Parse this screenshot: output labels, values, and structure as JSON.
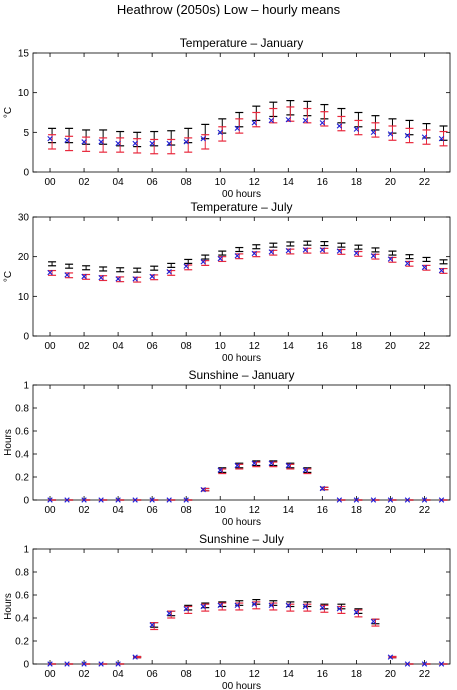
{
  "figure": {
    "title": "Heathrow (2050s) Low – hourly means"
  },
  "colors": {
    "black_series": "#000000",
    "red_series": "#e8283c",
    "blue_series": "#1f1fd6"
  },
  "chart_data": [
    {
      "type": "scatter",
      "title": "Temperature – January",
      "xlabel": "00 hours",
      "ylabel": "°C",
      "xlim": [
        -1,
        23.5
      ],
      "ylim": [
        0,
        15
      ],
      "xticks": [
        0,
        2,
        4,
        6,
        8,
        10,
        12,
        14,
        16,
        18,
        20,
        22
      ],
      "xtick_labels": [
        "00",
        "02",
        "04",
        "06",
        "08",
        "10",
        "12",
        "14",
        "16",
        "18",
        "20",
        "22"
      ],
      "yticks": [
        0,
        5,
        10,
        15
      ],
      "ytick_labels": [
        "0",
        "5",
        "10",
        "15"
      ],
      "x": [
        0,
        1,
        2,
        3,
        4,
        5,
        6,
        7,
        8,
        9,
        10,
        11,
        12,
        13,
        14,
        15,
        16,
        17,
        18,
        19,
        20,
        21,
        22,
        23
      ],
      "series": [
        {
          "marker": "errorbar",
          "color": "#000000",
          "values": [
            4.6,
            4.6,
            4.4,
            4.4,
            4.2,
            4.1,
            4.2,
            4.3,
            4.6,
            5.1,
            5.8,
            6.6,
            7.4,
            7.9,
            8.1,
            8.0,
            7.6,
            7.1,
            6.6,
            6.2,
            5.8,
            5.6,
            5.2,
            4.9
          ],
          "errors": [
            0.9,
            0.9,
            0.9,
            0.9,
            0.9,
            0.9,
            0.9,
            0.9,
            0.9,
            0.9,
            0.9,
            0.9,
            0.9,
            0.9,
            0.9,
            0.9,
            0.9,
            0.9,
            0.9,
            0.9,
            0.9,
            0.9,
            0.9,
            0.9
          ]
        },
        {
          "marker": "errorbar",
          "color": "#e8283c",
          "values": [
            3.8,
            3.6,
            3.5,
            3.4,
            3.4,
            3.3,
            3.2,
            3.2,
            3.4,
            3.8,
            4.8,
            5.8,
            6.6,
            7.1,
            7.3,
            7.1,
            6.7,
            6.1,
            5.6,
            5.3,
            4.9,
            4.6,
            4.4,
            4.2
          ],
          "errors": [
            0.9,
            0.9,
            0.9,
            0.9,
            0.9,
            0.9,
            0.9,
            0.9,
            0.9,
            0.9,
            0.9,
            0.9,
            0.9,
            0.9,
            0.9,
            0.9,
            0.9,
            0.9,
            0.9,
            0.9,
            0.9,
            0.9,
            0.9,
            0.9
          ]
        },
        {
          "marker": "x",
          "color": "#1f1fd6",
          "values": [
            4.2,
            4.0,
            3.8,
            3.8,
            3.6,
            3.6,
            3.6,
            3.6,
            3.8,
            4.2,
            5.0,
            5.5,
            6.2,
            6.5,
            6.6,
            6.5,
            6.2,
            5.8,
            5.4,
            5.0,
            4.8,
            4.6,
            4.4,
            4.2
          ]
        }
      ]
    },
    {
      "type": "scatter",
      "title": "Temperature – July",
      "xlabel": "00 hours",
      "ylabel": "°C",
      "xlim": [
        -1,
        23.5
      ],
      "ylim": [
        0,
        30
      ],
      "xticks": [
        0,
        2,
        4,
        6,
        8,
        10,
        12,
        14,
        16,
        18,
        20,
        22
      ],
      "xtick_labels": [
        "00",
        "02",
        "04",
        "06",
        "08",
        "10",
        "12",
        "14",
        "16",
        "18",
        "20",
        "22"
      ],
      "yticks": [
        0,
        10,
        20,
        30
      ],
      "ytick_labels": [
        "0",
        "10",
        "20",
        "30"
      ],
      "x": [
        0,
        1,
        2,
        3,
        4,
        5,
        6,
        7,
        8,
        9,
        10,
        11,
        12,
        13,
        14,
        15,
        16,
        17,
        18,
        19,
        20,
        21,
        22,
        23
      ],
      "series": [
        {
          "marker": "errorbar",
          "color": "#000000",
          "values": [
            18.2,
            17.6,
            17.2,
            16.9,
            16.7,
            16.6,
            17.1,
            17.8,
            18.8,
            19.9,
            20.9,
            21.8,
            22.5,
            22.9,
            23.2,
            23.4,
            23.3,
            22.9,
            22.4,
            21.7,
            20.9,
            20.0,
            19.3,
            18.7
          ],
          "errors": [
            0.5,
            0.5,
            0.5,
            0.5,
            0.5,
            0.5,
            0.5,
            0.5,
            0.5,
            0.5,
            0.5,
            0.5,
            0.5,
            0.5,
            0.5,
            0.5,
            0.5,
            0.5,
            0.5,
            0.5,
            0.5,
            0.5,
            0.5,
            0.5
          ]
        },
        {
          "marker": "errorbar",
          "color": "#e8283c",
          "values": [
            15.9,
            15.3,
            14.9,
            14.6,
            14.3,
            14.2,
            14.8,
            15.9,
            17.3,
            18.4,
            19.4,
            20.1,
            20.6,
            21.0,
            21.3,
            21.5,
            21.5,
            21.2,
            20.7,
            20.0,
            19.2,
            18.2,
            17.2,
            16.4
          ],
          "errors": [
            0.6,
            0.6,
            0.6,
            0.6,
            0.6,
            0.6,
            0.6,
            0.6,
            0.6,
            0.6,
            0.6,
            0.6,
            0.6,
            0.6,
            0.6,
            0.6,
            0.6,
            0.6,
            0.6,
            0.6,
            0.6,
            0.6,
            0.6,
            0.6
          ]
        },
        {
          "marker": "x",
          "color": "#1f1fd6",
          "values": [
            16.0,
            15.4,
            15.0,
            14.7,
            14.4,
            14.4,
            15.0,
            16.2,
            17.6,
            18.7,
            19.5,
            20.2,
            20.8,
            21.2,
            21.5,
            21.7,
            21.7,
            21.4,
            20.9,
            20.2,
            19.4,
            18.3,
            17.3,
            16.5
          ]
        }
      ]
    },
    {
      "type": "scatter",
      "title": "Sunshine – January",
      "xlabel": "00 hours",
      "ylabel": "Hours",
      "xlim": [
        -1,
        23.5
      ],
      "ylim": [
        0,
        1
      ],
      "xticks": [
        0,
        2,
        4,
        6,
        8,
        10,
        12,
        14,
        16,
        18,
        20,
        22
      ],
      "xtick_labels": [
        "00",
        "02",
        "04",
        "06",
        "08",
        "10",
        "12",
        "14",
        "16",
        "18",
        "20",
        "22"
      ],
      "yticks": [
        0,
        0.2,
        0.4,
        0.6,
        0.8,
        1
      ],
      "ytick_labels": [
        "0",
        "0.2",
        "0.4",
        "0.6",
        "0.8",
        "1"
      ],
      "x": [
        0,
        1,
        2,
        3,
        4,
        5,
        6,
        7,
        8,
        9,
        10,
        11,
        12,
        13,
        14,
        15,
        16,
        17,
        18,
        19,
        20,
        21,
        22,
        23
      ],
      "series": [
        {
          "marker": "errorbar",
          "color": "#000000",
          "values": [
            0,
            0,
            0,
            0,
            0,
            0,
            0,
            0,
            0,
            0.09,
            0.26,
            0.3,
            0.32,
            0.32,
            0.3,
            0.26,
            0.1,
            0,
            0,
            0,
            0,
            0,
            0,
            0
          ],
          "errors": [
            0,
            0,
            0,
            0,
            0,
            0,
            0,
            0,
            0,
            0.01,
            0.02,
            0.02,
            0.02,
            0.02,
            0.02,
            0.02,
            0.01,
            0,
            0,
            0,
            0,
            0,
            0,
            0
          ]
        },
        {
          "marker": "errorbar",
          "color": "#e8283c",
          "values": [
            0,
            0,
            0,
            0,
            0,
            0,
            0,
            0,
            0,
            0.09,
            0.25,
            0.29,
            0.31,
            0.31,
            0.29,
            0.25,
            0.1,
            0,
            0,
            0,
            0,
            0,
            0,
            0
          ],
          "errors": [
            0,
            0,
            0,
            0,
            0,
            0,
            0,
            0,
            0,
            0.01,
            0.02,
            0.02,
            0.02,
            0.02,
            0.02,
            0.02,
            0.01,
            0,
            0,
            0,
            0,
            0,
            0,
            0
          ]
        },
        {
          "marker": "x",
          "color": "#1f1fd6",
          "values": [
            0,
            0,
            0,
            0,
            0,
            0,
            0,
            0,
            0,
            0.09,
            0.26,
            0.3,
            0.32,
            0.32,
            0.3,
            0.26,
            0.1,
            0,
            0,
            0,
            0,
            0,
            0,
            0
          ]
        }
      ]
    },
    {
      "type": "scatter",
      "title": "Sunshine – July",
      "xlabel": "00 hours",
      "ylabel": "Hours",
      "xlim": [
        -1,
        23.5
      ],
      "ylim": [
        0,
        1
      ],
      "xticks": [
        0,
        2,
        4,
        6,
        8,
        10,
        12,
        14,
        16,
        18,
        20,
        22
      ],
      "xtick_labels": [
        "00",
        "02",
        "04",
        "06",
        "08",
        "10",
        "12",
        "14",
        "16",
        "18",
        "20",
        "22"
      ],
      "yticks": [
        0,
        0.2,
        0.4,
        0.6,
        0.8,
        1
      ],
      "ytick_labels": [
        "0",
        "0.2",
        "0.4",
        "0.6",
        "0.8",
        "1"
      ],
      "x": [
        0,
        1,
        2,
        3,
        4,
        5,
        6,
        7,
        8,
        9,
        10,
        11,
        12,
        13,
        14,
        15,
        16,
        17,
        18,
        19,
        20,
        21,
        22,
        23
      ],
      "series": [
        {
          "marker": "errorbar",
          "color": "#000000",
          "values": [
            0,
            0,
            0,
            0,
            0,
            0.06,
            0.34,
            0.44,
            0.49,
            0.51,
            0.52,
            0.53,
            0.54,
            0.53,
            0.52,
            0.52,
            0.5,
            0.5,
            0.46,
            0.37,
            0.06,
            0,
            0,
            0
          ],
          "errors": [
            0,
            0,
            0,
            0,
            0,
            0.005,
            0.02,
            0.02,
            0.02,
            0.02,
            0.02,
            0.02,
            0.02,
            0.02,
            0.02,
            0.02,
            0.02,
            0.02,
            0.02,
            0.02,
            0.005,
            0,
            0,
            0
          ]
        },
        {
          "marker": "errorbar",
          "color": "#e8283c",
          "values": [
            0,
            0,
            0,
            0,
            0,
            0.06,
            0.33,
            0.43,
            0.47,
            0.49,
            0.5,
            0.5,
            0.51,
            0.5,
            0.49,
            0.49,
            0.48,
            0.47,
            0.44,
            0.36,
            0.06,
            0,
            0,
            0
          ],
          "errors": [
            0,
            0,
            0,
            0,
            0,
            0.005,
            0.03,
            0.03,
            0.03,
            0.03,
            0.03,
            0.03,
            0.03,
            0.03,
            0.03,
            0.03,
            0.03,
            0.03,
            0.03,
            0.03,
            0.005,
            0,
            0,
            0
          ]
        },
        {
          "marker": "x",
          "color": "#1f1fd6",
          "values": [
            0,
            0,
            0,
            0,
            0,
            0.06,
            0.34,
            0.44,
            0.48,
            0.5,
            0.51,
            0.51,
            0.52,
            0.51,
            0.51,
            0.5,
            0.49,
            0.48,
            0.45,
            0.37,
            0.06,
            0,
            0,
            0
          ]
        }
      ]
    }
  ]
}
